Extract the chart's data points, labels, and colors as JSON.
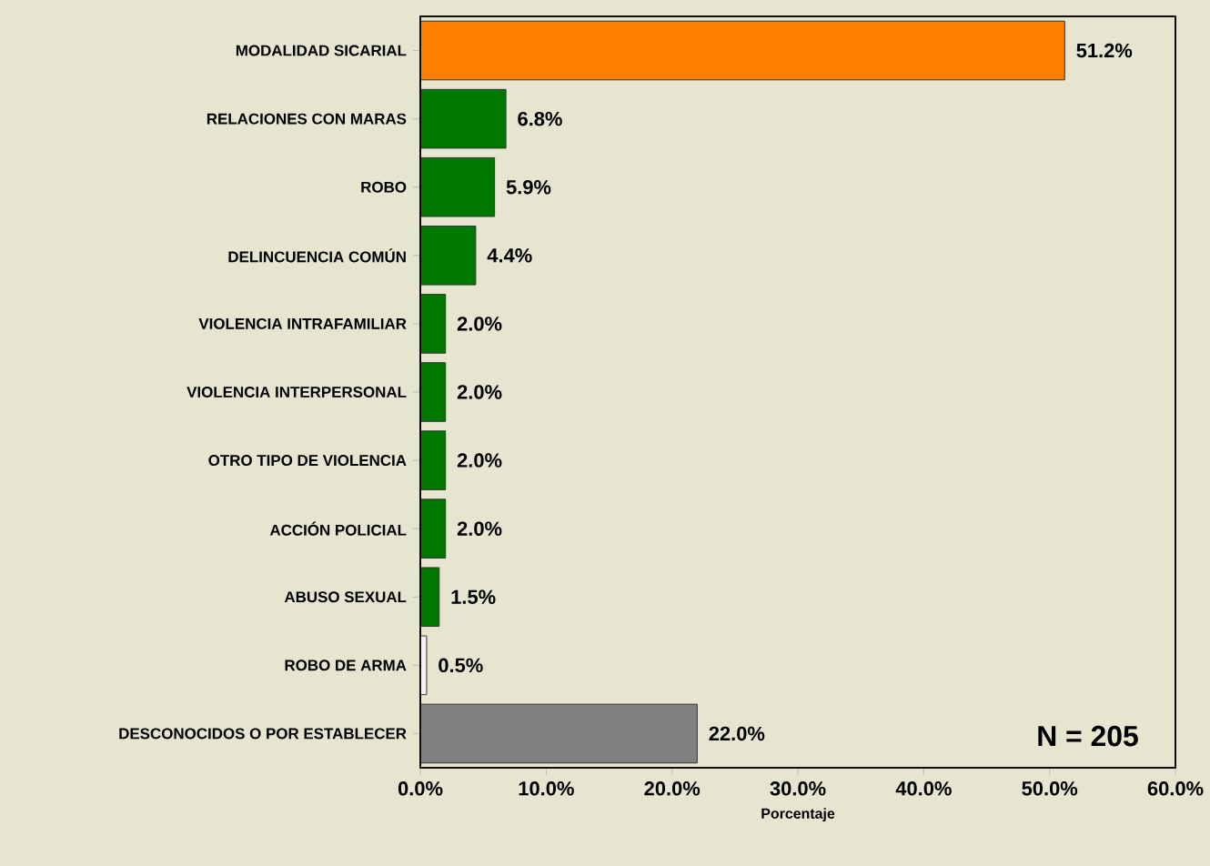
{
  "chart_data": {
    "type": "bar",
    "orientation": "horizontal",
    "xlabel": "Porcentaje",
    "categories": [
      "MODALIDAD SICARIAL",
      "RELACIONES CON MARAS",
      "ROBO",
      "DELINCUENCIA COMÚN",
      "VIOLENCIA INTRAFAMILIAR",
      "VIOLENCIA INTERPERSONAL",
      "OTRO TIPO DE VIOLENCIA",
      "ACCIÓN POLICIAL",
      "ABUSO SEXUAL",
      "ROBO DE ARMA",
      "DESCONOCIDOS O POR ESTABLECER"
    ],
    "values": [
      51.2,
      6.8,
      5.9,
      4.4,
      2.0,
      2.0,
      2.0,
      2.0,
      1.5,
      0.5,
      22.0
    ],
    "value_labels": [
      "51.2%",
      "6.8%",
      "5.9%",
      "4.4%",
      "2.0%",
      "2.0%",
      "2.0%",
      "2.0%",
      "1.5%",
      "0.5%",
      "22.0%"
    ],
    "colors": [
      "#ff8000",
      "#007800",
      "#007800",
      "#007800",
      "#007800",
      "#007800",
      "#007800",
      "#007800",
      "#007800",
      "#f4f4f4",
      "#808080"
    ],
    "xlim": [
      0,
      60
    ],
    "xticks": [
      {
        "value": 0,
        "label": "0.0%"
      },
      {
        "value": 10,
        "label": "10.0%"
      },
      {
        "value": 20,
        "label": "20.0%"
      },
      {
        "value": 30,
        "label": "30.0%"
      },
      {
        "value": 40,
        "label": "40.0%"
      },
      {
        "value": 50,
        "label": "50.0%"
      },
      {
        "value": 60,
        "label": "60.0%"
      }
    ],
    "annotations": [
      "N = 205"
    ]
  }
}
